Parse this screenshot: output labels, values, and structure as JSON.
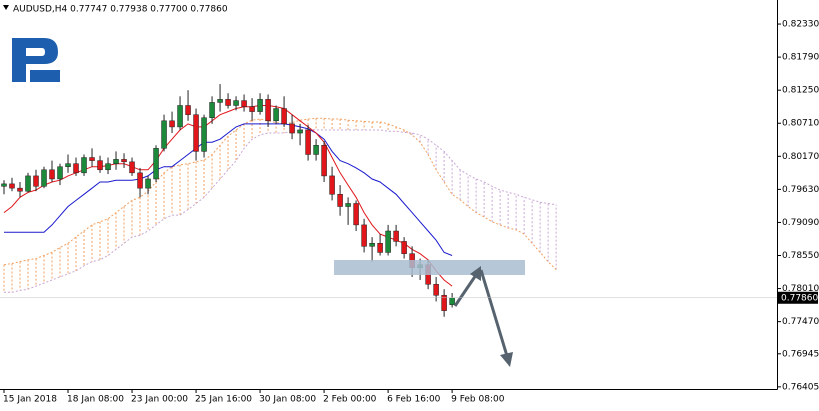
{
  "chart_data": {
    "type": "candlestick",
    "header": "AUDUSD,H4  0.77747 0.77938 0.77700 0.77860",
    "xlim": [
      -0.5,
      96.6
    ],
    "ylim": [
      0.7637,
      0.8269
    ],
    "xticks": [
      {
        "value": 0,
        "label": "15 Jan 2018"
      },
      {
        "value": 8,
        "label": "18 Jan 08:00"
      },
      {
        "value": 16,
        "label": "23 Jan 00:00"
      },
      {
        "value": 24,
        "label": "25 Jan 16:00"
      },
      {
        "value": 32,
        "label": "30 Jan 08:00"
      },
      {
        "value": 40,
        "label": "2 Feb 00:00"
      },
      {
        "value": 48,
        "label": "6 Feb 16:00"
      },
      {
        "value": 56,
        "label": "9 Feb 08:00"
      }
    ],
    "yticks": [
      {
        "value": 0.8233,
        "label": "0.82330"
      },
      {
        "value": 0.8179,
        "label": "0.81790"
      },
      {
        "value": 0.8125,
        "label": "0.81250"
      },
      {
        "value": 0.8071,
        "label": "0.80710"
      },
      {
        "value": 0.8017,
        "label": "0.80170"
      },
      {
        "value": 0.7963,
        "label": "0.79630"
      },
      {
        "value": 0.7909,
        "label": "0.79090"
      },
      {
        "value": 0.7855,
        "label": "0.78550"
      },
      {
        "value": 0.7801,
        "label": "0.78010"
      },
      {
        "value": 0.7747,
        "label": "0.77470"
      },
      {
        "value": 0.76945,
        "label": "0.76945"
      },
      {
        "value": 0.76405,
        "label": "0.76405"
      }
    ],
    "last_price": {
      "value": 0.7786,
      "label": "0.77860"
    },
    "up_color": "#1b8a3a",
    "down_color": "#e0161b",
    "open": [
      0.7968,
      0.7972,
      0.7965,
      0.796,
      0.7985,
      0.7968,
      0.7995,
      0.798,
      0.8,
      0.8005,
      0.799,
      0.8015,
      0.801,
      0.7995,
      0.8005,
      0.8012,
      0.8008,
      0.799,
      0.7965,
      0.798,
      0.803,
      0.8075,
      0.8065,
      0.81,
      0.8085,
      0.8025,
      0.808,
      0.8105,
      0.811,
      0.81,
      0.8108,
      0.8098,
      0.809,
      0.811,
      0.8075,
      0.8095,
      0.807,
      0.8055,
      0.806,
      0.802,
      0.8035,
      0.7985,
      0.7955,
      0.7935,
      0.794,
      0.7905,
      0.787,
      0.7875,
      0.786,
      0.7895,
      0.7878,
      0.7858,
      0.7835,
      0.784,
      0.7808,
      0.779,
      0.77747
    ],
    "high": [
      0.7978,
      0.7982,
      0.7975,
      0.799,
      0.7995,
      0.8,
      0.801,
      0.8005,
      0.802,
      0.8015,
      0.802,
      0.803,
      0.8018,
      0.8015,
      0.8025,
      0.8022,
      0.8015,
      0.7998,
      0.7985,
      0.8035,
      0.8085,
      0.809,
      0.8115,
      0.8125,
      0.8095,
      0.8085,
      0.8115,
      0.8135,
      0.812,
      0.8115,
      0.8118,
      0.8112,
      0.812,
      0.8118,
      0.81,
      0.8115,
      0.8085,
      0.807,
      0.8068,
      0.8045,
      0.8042,
      0.8,
      0.797,
      0.795,
      0.7945,
      0.7915,
      0.7885,
      0.789,
      0.7905,
      0.7905,
      0.7885,
      0.787,
      0.785,
      0.7848,
      0.782,
      0.78,
      0.77938
    ],
    "low": [
      0.7955,
      0.796,
      0.795,
      0.7958,
      0.796,
      0.7965,
      0.7975,
      0.797,
      0.799,
      0.7985,
      0.7985,
      0.8,
      0.799,
      0.7988,
      0.7995,
      0.7998,
      0.7985,
      0.795,
      0.7955,
      0.7975,
      0.8025,
      0.8055,
      0.806,
      0.8075,
      0.801,
      0.8015,
      0.807,
      0.809,
      0.8095,
      0.8092,
      0.809,
      0.8075,
      0.8085,
      0.8065,
      0.807,
      0.8065,
      0.8045,
      0.8035,
      0.801,
      0.801,
      0.7975,
      0.7945,
      0.792,
      0.7905,
      0.7895,
      0.786,
      0.7845,
      0.7855,
      0.7855,
      0.787,
      0.785,
      0.782,
      0.7815,
      0.78,
      0.778,
      0.7755,
      0.777
    ],
    "close": [
      0.7972,
      0.7965,
      0.796,
      0.7985,
      0.7968,
      0.7995,
      0.798,
      0.8,
      0.8005,
      0.799,
      0.8015,
      0.801,
      0.7995,
      0.8005,
      0.8012,
      0.8008,
      0.799,
      0.7965,
      0.798,
      0.803,
      0.8075,
      0.8065,
      0.81,
      0.8085,
      0.8025,
      0.808,
      0.8105,
      0.811,
      0.81,
      0.8108,
      0.8098,
      0.809,
      0.811,
      0.8075,
      0.8095,
      0.807,
      0.8055,
      0.806,
      0.802,
      0.8035,
      0.7985,
      0.7955,
      0.7935,
      0.794,
      0.7905,
      0.787,
      0.7875,
      0.786,
      0.7895,
      0.7878,
      0.7858,
      0.7835,
      0.784,
      0.7808,
      0.779,
      0.7765,
      0.7786
    ],
    "tenkan_sen": {
      "color": "#e0161b",
      "values": [
        0.7925,
        0.7935,
        0.795,
        0.7958,
        0.7962,
        0.797,
        0.7975,
        0.7978,
        0.7985,
        0.799,
        0.7995,
        0.8,
        0.8,
        0.8002,
        0.8005,
        0.8005,
        0.8,
        0.7995,
        0.7995,
        0.801,
        0.803,
        0.8045,
        0.806,
        0.807,
        0.8065,
        0.8065,
        0.8075,
        0.8085,
        0.809,
        0.8095,
        0.8098,
        0.8098,
        0.81,
        0.81,
        0.8098,
        0.8095,
        0.8085,
        0.8075,
        0.8065,
        0.8055,
        0.804,
        0.8015,
        0.799,
        0.797,
        0.795,
        0.7925,
        0.7905,
        0.789,
        0.7885,
        0.788,
        0.7875,
        0.7865,
        0.7858,
        0.7848,
        0.783,
        0.7815,
        0.7805
      ]
    },
    "kijun_sen": {
      "color": "#1a1acd",
      "values": [
        0.7893,
        0.7893,
        0.7893,
        0.7893,
        0.7893,
        0.7893,
        0.7905,
        0.792,
        0.7935,
        0.7945,
        0.7955,
        0.7965,
        0.7975,
        0.7975,
        0.7978,
        0.7978,
        0.7978,
        0.798,
        0.7985,
        0.7995,
        0.8,
        0.8,
        0.801,
        0.802,
        0.803,
        0.804,
        0.804,
        0.8045,
        0.8055,
        0.8065,
        0.807,
        0.807,
        0.807,
        0.807,
        0.807,
        0.807,
        0.8068,
        0.8065,
        0.8062,
        0.8055,
        0.8045,
        0.8025,
        0.801,
        0.8005,
        0.7998,
        0.799,
        0.798,
        0.7975,
        0.7965,
        0.7955,
        0.794,
        0.7925,
        0.791,
        0.7895,
        0.788,
        0.786,
        0.7855
      ]
    },
    "senkou_span_a": {
      "color": "#f0a060",
      "values": [
        0.784,
        0.7842,
        0.7845,
        0.7848,
        0.785,
        0.7855,
        0.786,
        0.7868,
        0.7875,
        0.7885,
        0.7895,
        0.7905,
        0.791,
        0.7915,
        0.7925,
        0.7935,
        0.7945,
        0.795,
        0.796,
        0.7975,
        0.799,
        0.8,
        0.8003,
        0.8005,
        0.8008,
        0.8011,
        0.802,
        0.8035,
        0.805,
        0.806,
        0.807,
        0.8076,
        0.8078,
        0.8075,
        0.8072,
        0.807,
        0.8072,
        0.8076,
        0.8078,
        0.8079,
        0.8079,
        0.8078,
        0.8078,
        0.8076,
        0.8075,
        0.8074,
        0.8073,
        0.8073,
        0.807,
        0.8065,
        0.806,
        0.8052,
        0.804,
        0.802,
        0.7995,
        0.7975,
        0.7955,
        0.7946,
        0.7935,
        0.7925,
        0.7918,
        0.791,
        0.7905,
        0.79,
        0.7897,
        0.789,
        0.7875,
        0.786,
        0.7845,
        0.7832
      ]
    },
    "senkou_span_b": {
      "color": "#c9a7d6",
      "values": [
        0.7795,
        0.7795,
        0.7798,
        0.78,
        0.7805,
        0.781,
        0.7815,
        0.782,
        0.7825,
        0.783,
        0.7838,
        0.7845,
        0.7848,
        0.7855,
        0.7865,
        0.7875,
        0.7885,
        0.7888,
        0.7895,
        0.7905,
        0.7915,
        0.7921,
        0.7921,
        0.793,
        0.794,
        0.795,
        0.7965,
        0.798,
        0.7995,
        0.801,
        0.803,
        0.8045,
        0.8052,
        0.8055,
        0.8055,
        0.8055,
        0.8058,
        0.806,
        0.8062,
        0.806,
        0.806,
        0.806,
        0.806,
        0.806,
        0.806,
        0.806,
        0.806,
        0.806,
        0.8058,
        0.8058,
        0.8056,
        0.8055,
        0.8052,
        0.8045,
        0.8035,
        0.8025,
        0.801,
        0.7995,
        0.7987,
        0.798,
        0.7975,
        0.7968,
        0.7962,
        0.7958,
        0.7955,
        0.795,
        0.7946,
        0.7942,
        0.794,
        0.7938
      ]
    }
  }
}
